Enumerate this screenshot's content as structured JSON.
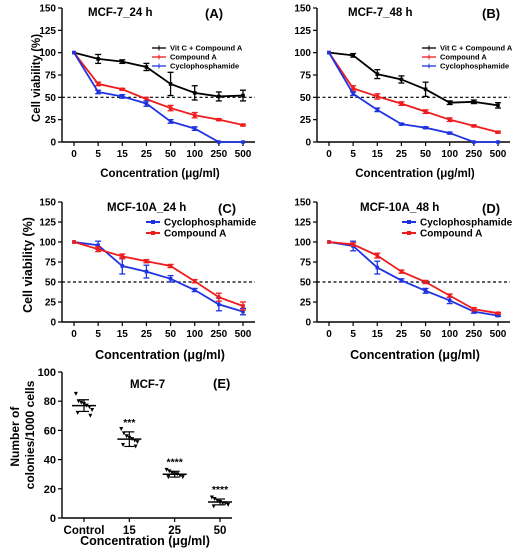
{
  "chart_data": [
    {
      "panel_label": "(A)",
      "title": "MCF-7_24 h",
      "type": "line",
      "xlabel": "Concentration (μg/ml)",
      "ylabel": "Cell viability (%)",
      "categories": [
        "0",
        "5",
        "15",
        "25",
        "50",
        "100",
        "250",
        "500"
      ],
      "ylim": [
        0,
        150
      ],
      "yticks": [
        "0",
        "25",
        "50",
        "75",
        "100",
        "125",
        "150"
      ],
      "reference_line": 50,
      "legend_position": "top-right",
      "series": [
        {
          "name": "Vit C + Compound A",
          "color": "#000000",
          "values": [
            100,
            93,
            90,
            84,
            65,
            55,
            51,
            52
          ],
          "errors": [
            0,
            5,
            2,
            4,
            13,
            8,
            5,
            6
          ]
        },
        {
          "name": "Compound A",
          "color": "#ee1c1c",
          "values": [
            100,
            65,
            59,
            48,
            38,
            30,
            25,
            19
          ],
          "errors": [
            0,
            2,
            1,
            2,
            3,
            3,
            1,
            1
          ]
        },
        {
          "name": "Cyclophosphamide",
          "color": "#1f34e0",
          "values": [
            100,
            56,
            51,
            43,
            23,
            15,
            0,
            0
          ],
          "errors": [
            0,
            2,
            2,
            3,
            2,
            2,
            0,
            0
          ]
        }
      ]
    },
    {
      "panel_label": "(B)",
      "title": "MCF-7_48 h",
      "type": "line",
      "xlabel": "Concentration (μg/ml)",
      "ylabel": "",
      "categories": [
        "0",
        "5",
        "15",
        "25",
        "50",
        "100",
        "250",
        "500"
      ],
      "ylim": [
        0,
        150
      ],
      "yticks": [
        "0",
        "25",
        "50",
        "75",
        "100",
        "125",
        "150"
      ],
      "reference_line": 50,
      "legend_position": "top-right",
      "series": [
        {
          "name": "Vit C + Compound A",
          "color": "#000000",
          "values": [
            100,
            97,
            76,
            70,
            59,
            44,
            45,
            41
          ],
          "errors": [
            0,
            2,
            5,
            4,
            8,
            2,
            2,
            3
          ]
        },
        {
          "name": "Compound A",
          "color": "#ee1c1c",
          "values": [
            100,
            60,
            51,
            43,
            34,
            25,
            18,
            11
          ],
          "errors": [
            0,
            3,
            3,
            2,
            2,
            2,
            1,
            1
          ]
        },
        {
          "name": "Cyclophosphamide",
          "color": "#1f34e0",
          "values": [
            100,
            54,
            36,
            20,
            16,
            10,
            0,
            0
          ],
          "errors": [
            0,
            2,
            2,
            1,
            1,
            1,
            0,
            0
          ]
        }
      ]
    },
    {
      "panel_label": "(C)",
      "title": "MCF-10A_24 h",
      "type": "line",
      "xlabel": "Concentration (μg/ml)",
      "ylabel": "Cell viability (%)",
      "categories": [
        "0",
        "5",
        "15",
        "25",
        "50",
        "100",
        "250",
        "500"
      ],
      "ylim": [
        0,
        150
      ],
      "yticks": [
        "0",
        "25",
        "50",
        "75",
        "100",
        "125",
        "150"
      ],
      "reference_line": 50,
      "legend_position": "top-right",
      "series": [
        {
          "name": "Cyclophosphamide",
          "color": "#1f34e0",
          "values": [
            100,
            96,
            70,
            63,
            54,
            40,
            22,
            13
          ],
          "errors": [
            0,
            5,
            10,
            8,
            4,
            2,
            8,
            4
          ]
        },
        {
          "name": "Compound A",
          "color": "#ee1c1c",
          "values": [
            100,
            91,
            82,
            76,
            70,
            51,
            31,
            20
          ],
          "errors": [
            0,
            3,
            3,
            2,
            2,
            2,
            5,
            5
          ]
        }
      ]
    },
    {
      "panel_label": "(D)",
      "title": "MCF-10A_48 h",
      "type": "line",
      "xlabel": "Concentration (μg/ml)",
      "ylabel": "",
      "categories": [
        "0",
        "5",
        "15",
        "25",
        "50",
        "100",
        "250",
        "500"
      ],
      "ylim": [
        0,
        150
      ],
      "yticks": [
        "0",
        "25",
        "50",
        "75",
        "100",
        "125",
        "150"
      ],
      "reference_line": 50,
      "legend_position": "top-right",
      "series": [
        {
          "name": "Cyclophosphamide",
          "color": "#1f34e0",
          "values": [
            100,
            95,
            68,
            52,
            39,
            27,
            13,
            8
          ],
          "errors": [
            0,
            6,
            8,
            2,
            3,
            4,
            2,
            1
          ]
        },
        {
          "name": "Compound A",
          "color": "#ee1c1c",
          "values": [
            100,
            97,
            83,
            63,
            50,
            33,
            16,
            11
          ],
          "errors": [
            0,
            2,
            3,
            2,
            2,
            2,
            2,
            1
          ]
        }
      ]
    },
    {
      "panel_label": "(E)",
      "title": "MCF-7",
      "type": "scatter",
      "xlabel": "Concentration (μg/ml)",
      "ylabel": "Number of colonies/1000 cells",
      "categories": [
        "Control",
        "15",
        "25",
        "50"
      ],
      "ylim": [
        0,
        100
      ],
      "yticks": [
        "0",
        "20",
        "40",
        "60",
        "80",
        "100"
      ],
      "series": [
        {
          "name": "",
          "color": "#000000",
          "points": [
            [
              85,
              80,
              79,
              78,
              77,
              76,
              74,
              72,
              70
            ],
            [
              61,
              58,
              56,
              55,
              54,
              53,
              52,
              50,
              49
            ],
            [
              33,
              32,
              31,
              30,
              30,
              29,
              28,
              28
            ],
            [
              14,
              13,
              12,
              11,
              10,
              10,
              9,
              8
            ]
          ],
          "means": [
            77,
            54,
            30,
            11
          ],
          "sd": [
            4,
            5,
            2,
            2
          ]
        }
      ],
      "significance": [
        "",
        "***",
        "****",
        "****"
      ]
    }
  ]
}
